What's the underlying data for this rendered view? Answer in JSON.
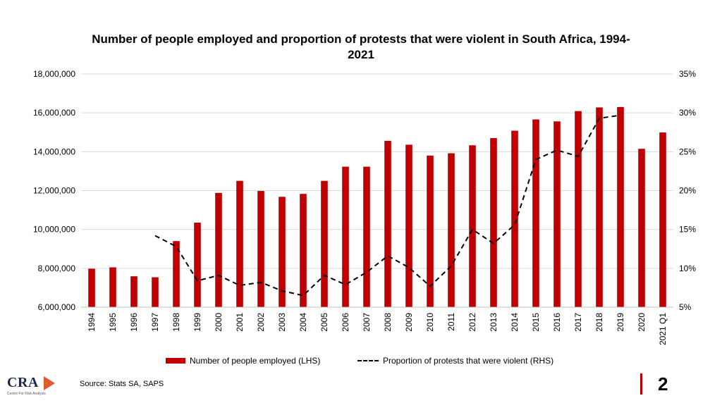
{
  "chart_data": {
    "type": "bar",
    "title": "Number of people employed and proportion of protests that were violent in South Africa, 1994-2021",
    "categories": [
      "1994",
      "1995",
      "1996",
      "1997",
      "1998",
      "1999",
      "2000",
      "2001",
      "2002",
      "2003",
      "2004",
      "2005",
      "2006",
      "2007",
      "2008",
      "2009",
      "2010",
      "2011",
      "2012",
      "2013",
      "2014",
      "2015",
      "2016",
      "2017",
      "2018",
      "2019",
      "2020",
      "2021 Q1"
    ],
    "series": [
      {
        "name": "Number of people employed (LHS)",
        "type": "bar",
        "axis": "left",
        "color": "#C00000",
        "values": [
          7980000,
          8050000,
          7590000,
          7540000,
          9400000,
          10350000,
          11880000,
          12500000,
          11980000,
          11680000,
          11830000,
          12500000,
          13230000,
          13230000,
          14560000,
          14360000,
          13800000,
          13920000,
          14330000,
          14700000,
          15080000,
          15660000,
          15560000,
          16090000,
          16280000,
          16300000,
          14150000,
          14990000
        ]
      },
      {
        "name": "Proportion of protests that were violent  (RHS)",
        "type": "line",
        "axis": "right",
        "color": "#000000",
        "dashed": true,
        "values": [
          null,
          null,
          null,
          14.2,
          12.8,
          8.4,
          9.1,
          7.8,
          8.2,
          7.1,
          6.5,
          9.1,
          7.9,
          9.5,
          11.6,
          10.1,
          7.7,
          10.3,
          15.0,
          13.2,
          15.6,
          24.0,
          25.2,
          24.4,
          29.3,
          29.7,
          null,
          null
        ]
      }
    ],
    "y_left": {
      "min": 6000000,
      "max": 18000000,
      "step": 2000000,
      "ticks": [
        "6,000,000",
        "8,000,000",
        "10,000,000",
        "12,000,000",
        "14,000,000",
        "16,000,000",
        "18,000,000"
      ]
    },
    "y_right": {
      "min": 5,
      "max": 35,
      "step": 5,
      "ticks": [
        "5%",
        "10%",
        "15%",
        "20%",
        "25%",
        "30%",
        "35%"
      ]
    },
    "grid": true,
    "legend_position": "bottom"
  },
  "legend": {
    "bar_label": "Number of people employed (LHS)",
    "line_label": "Proportion of protests that were violent  (RHS)"
  },
  "footer": {
    "source": "Source: Stats SA, SAPS",
    "logo_text": "CRA",
    "logo_sub": "Centre For Risk Analysis",
    "page_number": "2"
  }
}
